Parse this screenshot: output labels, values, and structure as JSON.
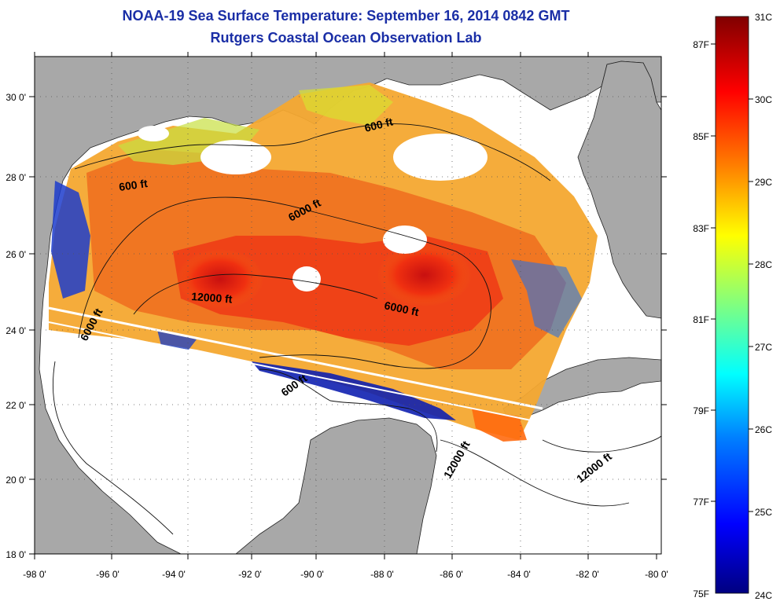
{
  "header": {
    "title": "NOAA-19 Sea Surface Temperature:  September 16, 2014 0842 GMT",
    "subtitle": "Rutgers Coastal Ocean Observation Lab"
  },
  "map": {
    "lon_ticks": [
      "-98 0'",
      "-96 0'",
      "-94 0'",
      "-92 0'",
      "-90 0'",
      "-88 0'",
      "-86 0'",
      "-84 0'",
      "-82 0'",
      "-80 0'"
    ],
    "lat_ticks": [
      "18 0'",
      "20 0'",
      "22 0'",
      "24 0'",
      "26 0'",
      "28 0'",
      "30 0'"
    ],
    "contour_labels": [
      {
        "text": "600 ft"
      },
      {
        "text": "600 ft"
      },
      {
        "text": "6000 ft"
      },
      {
        "text": "12000 ft"
      },
      {
        "text": "6000 ft"
      },
      {
        "text": "6000 ft"
      },
      {
        "text": "600 ft"
      },
      {
        "text": "12000 ft"
      },
      {
        "text": "12000 ft"
      }
    ],
    "colors": {
      "land": "#a8a8a8",
      "no_data": "#ffffff",
      "contour": "#111111",
      "grid": "#555555"
    }
  },
  "colorbar": {
    "celsius": [
      "31C",
      "30C",
      "29C",
      "28C",
      "27C",
      "26C",
      "25C",
      "24C"
    ],
    "fahrenheit": [
      "87F",
      "85F",
      "83F",
      "81F",
      "79F",
      "77F",
      "75F"
    ],
    "stops": [
      "#000080",
      "#0000ff",
      "#0080ff",
      "#00ffff",
      "#80ff80",
      "#ffff00",
      "#ff8000",
      "#ff0000",
      "#800000"
    ]
  }
}
